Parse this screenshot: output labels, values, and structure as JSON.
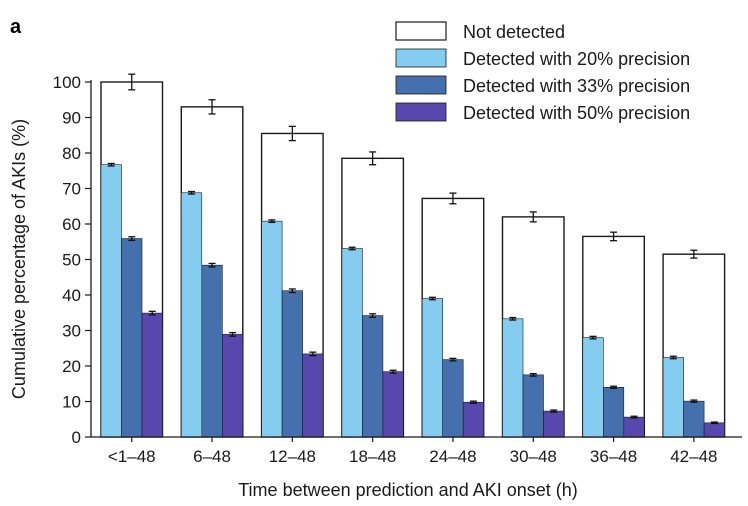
{
  "chart_data": {
    "type": "bar",
    "panel_label": "a",
    "title": "",
    "xlabel": "Time between prediction and AKI onset (h)",
    "ylabel": "Cumulative percentage of AKIs (%)",
    "ylim": [
      0,
      100
    ],
    "yticks": [
      0,
      10,
      20,
      30,
      40,
      50,
      60,
      70,
      80,
      90,
      100
    ],
    "categories": [
      "<1–48",
      "6–48",
      "12–48",
      "18–48",
      "24–48",
      "30–48",
      "36–48",
      "42–48"
    ],
    "total": {
      "name": "Not detected",
      "values": [
        100,
        93,
        85.5,
        78.5,
        67.2,
        62,
        56.5,
        51.5
      ],
      "errors": [
        2.2,
        2.0,
        2.0,
        1.8,
        1.5,
        1.4,
        1.2,
        1.1
      ],
      "color": "#ffffff",
      "edge": "#1a1a1a"
    },
    "series": [
      {
        "name": "Detected with 20% precision",
        "values": [
          76.7,
          68.8,
          60.8,
          53.1,
          39.0,
          33.3,
          28.0,
          22.4
        ],
        "errors": [
          0.35,
          0.35,
          0.35,
          0.35,
          0.35,
          0.35,
          0.35,
          0.35
        ],
        "color": "#84cdf1"
      },
      {
        "name": "Detected with 33% precision",
        "values": [
          55.9,
          48.4,
          41.2,
          34.2,
          21.8,
          17.5,
          14.0,
          10.1
        ],
        "errors": [
          0.5,
          0.5,
          0.5,
          0.5,
          0.35,
          0.35,
          0.3,
          0.3
        ],
        "color": "#4470ae"
      },
      {
        "name": "Detected with 50% precision",
        "values": [
          34.9,
          28.9,
          23.4,
          18.4,
          9.8,
          7.3,
          5.6,
          4.0
        ],
        "errors": [
          0.5,
          0.5,
          0.5,
          0.4,
          0.3,
          0.3,
          0.25,
          0.2
        ],
        "color": "#5847ac"
      }
    ],
    "legend_position": "top-right",
    "grid": false
  }
}
